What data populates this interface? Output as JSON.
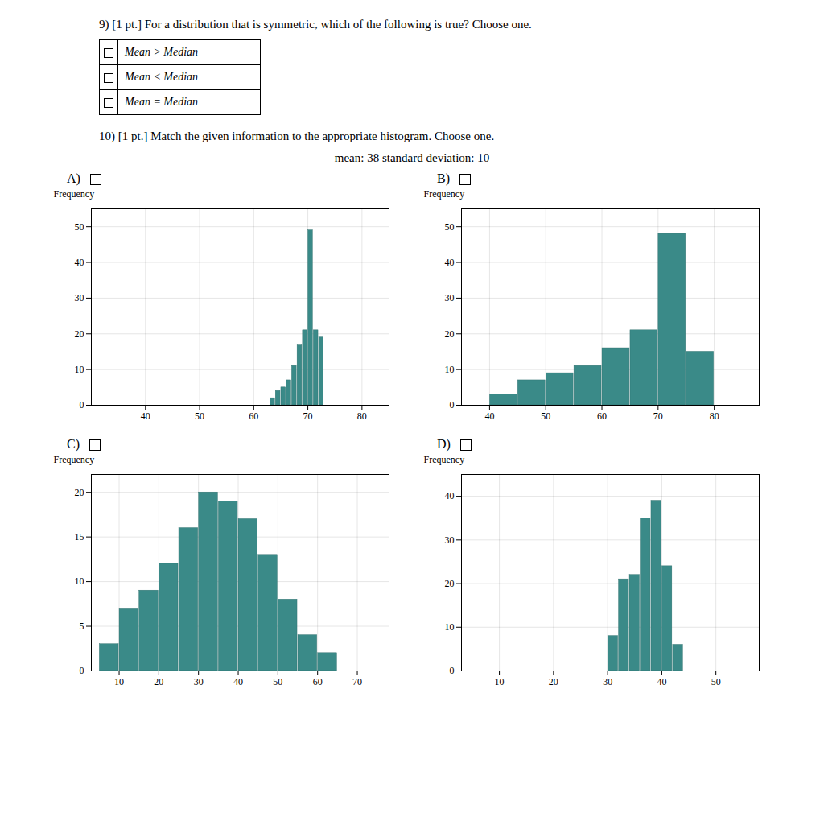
{
  "title": "9) [1 pt.]  For a distribution that is symmetric, which of the following is true? Choose one.",
  "categories": [
    "Mean > Median",
    "Mean < Median",
    "Mean = Median"
  ],
  "annotations": [
    "10) [1 pt.]  Match the given information to the appropriate histogram. Choose one.",
    "mean: 38     standard deviation: 10"
  ],
  "chart_data": [
    {
      "type": "histogram",
      "title": "A)",
      "ylabel": "Frequency",
      "color": "#3a8a88",
      "bins": [
        63,
        64,
        65,
        66,
        67,
        68,
        69,
        70,
        71,
        72,
        73
      ],
      "values": [
        2,
        4,
        5,
        7,
        11,
        17,
        21,
        49,
        21,
        19
      ],
      "xlim": [
        30,
        85
      ],
      "ylim": [
        0,
        55
      ],
      "xticks": [
        40,
        50,
        60,
        70,
        80
      ],
      "yticks": [
        0,
        10,
        20,
        30,
        40,
        50
      ],
      "grid": true
    },
    {
      "type": "histogram",
      "title": "B)",
      "ylabel": "Frequency",
      "color": "#3a8a88",
      "bins": [
        40,
        45,
        50,
        55,
        60,
        65,
        70,
        75,
        80
      ],
      "values": [
        3,
        7,
        9,
        11,
        16,
        21,
        48,
        15
      ],
      "xlim": [
        35,
        88
      ],
      "ylim": [
        0,
        55
      ],
      "xticks": [
        40,
        50,
        60,
        70,
        80
      ],
      "yticks": [
        0,
        10,
        20,
        30,
        40,
        50
      ],
      "grid": true
    },
    {
      "type": "histogram",
      "title": "C)",
      "ylabel": "Frequency",
      "color": "#3a8a88",
      "bins": [
        5,
        10,
        15,
        20,
        25,
        30,
        35,
        40,
        45,
        50,
        55,
        60,
        65,
        70
      ],
      "values": [
        3,
        7,
        9,
        12,
        16,
        20,
        19,
        17,
        13,
        8,
        4,
        2,
        0
      ],
      "xlim": [
        3,
        78
      ],
      "ylim": [
        0,
        22
      ],
      "xticks": [
        10,
        20,
        30,
        40,
        50,
        60,
        70
      ],
      "yticks": [
        0,
        5,
        10,
        15,
        20
      ],
      "grid": true
    },
    {
      "type": "histogram",
      "title": "D)",
      "ylabel": "Frequency",
      "color": "#3a8a88",
      "bins": [
        30,
        32,
        34,
        36,
        38,
        40,
        42,
        44,
        46
      ],
      "values": [
        8,
        21,
        22,
        35,
        39,
        24,
        6,
        0
      ],
      "xlim": [
        3,
        58
      ],
      "ylim": [
        0,
        45
      ],
      "xticks": [
        10,
        20,
        30,
        40,
        50
      ],
      "yticks": [
        0,
        10,
        20,
        30,
        40
      ],
      "grid": true
    }
  ]
}
